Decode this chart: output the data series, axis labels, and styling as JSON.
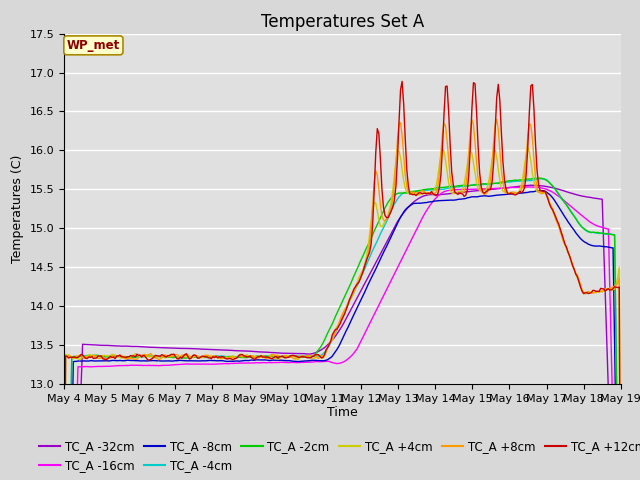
{
  "title": "Temperatures Set A",
  "xlabel": "Time",
  "ylabel": "Temperatures (C)",
  "ylim": [
    13.0,
    17.5
  ],
  "x_tick_labels": [
    "May 4",
    "May 5",
    "May 6",
    "May 7",
    "May 8",
    "May 9",
    "May 10",
    "May 11",
    "May 12",
    "May 13",
    "May 14",
    "May 15",
    "May 16",
    "May 17",
    "May 18",
    "May 19"
  ],
  "annotation": "WP_met",
  "series": [
    {
      "label": "TC_A -32cm",
      "color": "#9900cc"
    },
    {
      "label": "TC_A -16cm",
      "color": "#ff00ff"
    },
    {
      "label": "TC_A -8cm",
      "color": "#0000cc"
    },
    {
      "label": "TC_A -4cm",
      "color": "#00cccc"
    },
    {
      "label": "TC_A -2cm",
      "color": "#00cc00"
    },
    {
      "label": "TC_A +4cm",
      "color": "#cccc00"
    },
    {
      "label": "TC_A +8cm",
      "color": "#ff9900"
    },
    {
      "label": "TC_A +12cm",
      "color": "#cc0000"
    }
  ],
  "bg_color": "#e0e0e0",
  "grid_color": "#ffffff",
  "title_fontsize": 12,
  "label_fontsize": 9,
  "tick_fontsize": 8,
  "legend_fontsize": 8.5
}
